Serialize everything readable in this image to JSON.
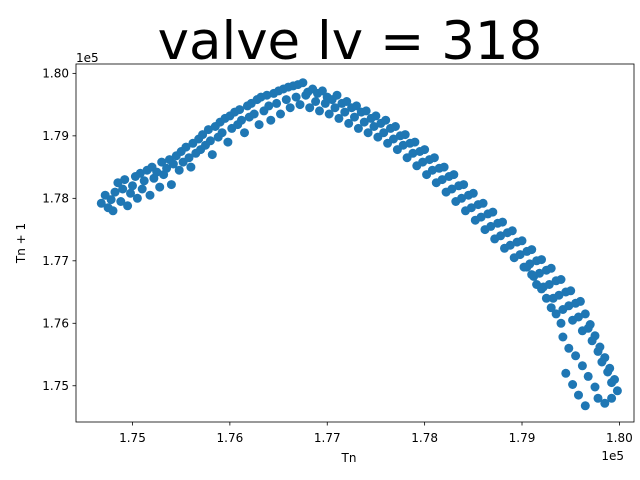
{
  "chart_data": {
    "type": "scatter",
    "title": "valve lv = 318",
    "xlabel": "Tn",
    "ylabel": "Tn + 1",
    "x_offset_label": "1e5",
    "y_offset_label": "1e5",
    "xlim": [
      1.7442,
      1.8015
    ],
    "ylim": [
      1.7442,
      1.8015
    ],
    "xticks": [
      {
        "value": 1.75,
        "label": "1.75"
      },
      {
        "value": 1.76,
        "label": "1.76"
      },
      {
        "value": 1.77,
        "label": "1.77"
      },
      {
        "value": 1.78,
        "label": "1.78"
      },
      {
        "value": 1.79,
        "label": "1.79"
      },
      {
        "value": 1.8,
        "label": "1.80"
      }
    ],
    "yticks": [
      {
        "value": 1.75,
        "label": "1.75"
      },
      {
        "value": 1.76,
        "label": "1.76"
      },
      {
        "value": 1.77,
        "label": "1.77"
      },
      {
        "value": 1.78,
        "label": "1.78"
      },
      {
        "value": 1.79,
        "label": "1.79"
      },
      {
        "value": 1.8,
        "label": "1.80"
      }
    ],
    "grid": false,
    "marker_color": "#1f77b4",
    "points": [
      [
        1.7468,
        1.7792
      ],
      [
        1.7472,
        1.7805
      ],
      [
        1.7475,
        1.7785
      ],
      [
        1.7478,
        1.7798
      ],
      [
        1.748,
        1.778
      ],
      [
        1.7482,
        1.781
      ],
      [
        1.7485,
        1.7825
      ],
      [
        1.7488,
        1.7795
      ],
      [
        1.749,
        1.7815
      ],
      [
        1.7492,
        1.783
      ],
      [
        1.7495,
        1.7788
      ],
      [
        1.7498,
        1.7808
      ],
      [
        1.75,
        1.782
      ],
      [
        1.7503,
        1.7835
      ],
      [
        1.7505,
        1.78
      ],
      [
        1.7508,
        1.784
      ],
      [
        1.751,
        1.7815
      ],
      [
        1.7512,
        1.7828
      ],
      [
        1.7515,
        1.7845
      ],
      [
        1.7518,
        1.7805
      ],
      [
        1.752,
        1.785
      ],
      [
        1.7522,
        1.7832
      ],
      [
        1.7525,
        1.7842
      ],
      [
        1.7528,
        1.7818
      ],
      [
        1.753,
        1.7858
      ],
      [
        1.7532,
        1.7838
      ],
      [
        1.7535,
        1.7848
      ],
      [
        1.7538,
        1.7862
      ],
      [
        1.754,
        1.7822
      ],
      [
        1.7542,
        1.7855
      ],
      [
        1.7545,
        1.7868
      ],
      [
        1.7548,
        1.7845
      ],
      [
        1.755,
        1.7875
      ],
      [
        1.7552,
        1.7858
      ],
      [
        1.7555,
        1.7882
      ],
      [
        1.7558,
        1.7865
      ],
      [
        1.756,
        1.785
      ],
      [
        1.7562,
        1.7888
      ],
      [
        1.7565,
        1.7872
      ],
      [
        1.7568,
        1.7895
      ],
      [
        1.757,
        1.7878
      ],
      [
        1.7572,
        1.7902
      ],
      [
        1.7575,
        1.7885
      ],
      [
        1.7578,
        1.791
      ],
      [
        1.758,
        1.7892
      ],
      [
        1.7582,
        1.787
      ],
      [
        1.7585,
        1.7915
      ],
      [
        1.7588,
        1.7898
      ],
      [
        1.759,
        1.7922
      ],
      [
        1.7592,
        1.7905
      ],
      [
        1.7595,
        1.7928
      ],
      [
        1.7598,
        1.789
      ],
      [
        1.76,
        1.7932
      ],
      [
        1.7602,
        1.7912
      ],
      [
        1.7605,
        1.7938
      ],
      [
        1.7608,
        1.7918
      ],
      [
        1.761,
        1.7942
      ],
      [
        1.7612,
        1.7925
      ],
      [
        1.7615,
        1.7905
      ],
      [
        1.7618,
        1.7948
      ],
      [
        1.762,
        1.793
      ],
      [
        1.7622,
        1.7952
      ],
      [
        1.7625,
        1.7935
      ],
      [
        1.7628,
        1.7958
      ],
      [
        1.763,
        1.7918
      ],
      [
        1.7632,
        1.7962
      ],
      [
        1.7635,
        1.794
      ],
      [
        1.7638,
        1.7965
      ],
      [
        1.764,
        1.7948
      ],
      [
        1.7642,
        1.7925
      ],
      [
        1.7645,
        1.7968
      ],
      [
        1.7648,
        1.7952
      ],
      [
        1.765,
        1.7972
      ],
      [
        1.7652,
        1.7935
      ],
      [
        1.7655,
        1.7975
      ],
      [
        1.7658,
        1.7958
      ],
      [
        1.766,
        1.7978
      ],
      [
        1.7662,
        1.7945
      ],
      [
        1.7665,
        1.798
      ],
      [
        1.7668,
        1.7962
      ],
      [
        1.767,
        1.7982
      ],
      [
        1.7672,
        1.795
      ],
      [
        1.7675,
        1.7985
      ],
      [
        1.7678,
        1.7965
      ],
      [
        1.768,
        1.797
      ],
      [
        1.7682,
        1.7945
      ],
      [
        1.7685,
        1.7975
      ],
      [
        1.7688,
        1.7955
      ],
      [
        1.769,
        1.7968
      ],
      [
        1.7692,
        1.794
      ],
      [
        1.7695,
        1.7972
      ],
      [
        1.7698,
        1.7952
      ],
      [
        1.77,
        1.7962
      ],
      [
        1.7702,
        1.7935
      ],
      [
        1.7705,
        1.7958
      ],
      [
        1.7708,
        1.7945
      ],
      [
        1.771,
        1.7965
      ],
      [
        1.7712,
        1.7928
      ],
      [
        1.7715,
        1.7952
      ],
      [
        1.7718,
        1.7938
      ],
      [
        1.772,
        1.7955
      ],
      [
        1.7722,
        1.792
      ],
      [
        1.7725,
        1.7945
      ],
      [
        1.7728,
        1.793
      ],
      [
        1.773,
        1.7948
      ],
      [
        1.7732,
        1.7912
      ],
      [
        1.7735,
        1.7938
      ],
      [
        1.7738,
        1.7922
      ],
      [
        1.774,
        1.794
      ],
      [
        1.7742,
        1.7905
      ],
      [
        1.7745,
        1.7928
      ],
      [
        1.7748,
        1.7915
      ],
      [
        1.775,
        1.7932
      ],
      [
        1.7752,
        1.7898
      ],
      [
        1.7755,
        1.792
      ],
      [
        1.7758,
        1.7905
      ],
      [
        1.776,
        1.7925
      ],
      [
        1.7762,
        1.7888
      ],
      [
        1.7765,
        1.7912
      ],
      [
        1.7768,
        1.7895
      ],
      [
        1.777,
        1.7915
      ],
      [
        1.7772,
        1.7878
      ],
      [
        1.7775,
        1.79
      ],
      [
        1.7778,
        1.7885
      ],
      [
        1.778,
        1.7902
      ],
      [
        1.7782,
        1.7865
      ],
      [
        1.7785,
        1.7888
      ],
      [
        1.7788,
        1.7872
      ],
      [
        1.779,
        1.789
      ],
      [
        1.7792,
        1.7852
      ],
      [
        1.7795,
        1.7875
      ],
      [
        1.7798,
        1.7858
      ],
      [
        1.78,
        1.7878
      ],
      [
        1.7802,
        1.7838
      ],
      [
        1.7805,
        1.7862
      ],
      [
        1.7808,
        1.7845
      ],
      [
        1.781,
        1.7865
      ],
      [
        1.7812,
        1.7825
      ],
      [
        1.7815,
        1.7848
      ],
      [
        1.7818,
        1.783
      ],
      [
        1.782,
        1.785
      ],
      [
        1.7822,
        1.781
      ],
      [
        1.7825,
        1.7835
      ],
      [
        1.7828,
        1.7815
      ],
      [
        1.783,
        1.7838
      ],
      [
        1.7832,
        1.7795
      ],
      [
        1.7835,
        1.782
      ],
      [
        1.7838,
        1.78
      ],
      [
        1.784,
        1.7822
      ],
      [
        1.7842,
        1.778
      ],
      [
        1.7845,
        1.7805
      ],
      [
        1.7848,
        1.7785
      ],
      [
        1.785,
        1.7808
      ],
      [
        1.7852,
        1.7765
      ],
      [
        1.7855,
        1.779
      ],
      [
        1.7858,
        1.777
      ],
      [
        1.786,
        1.7792
      ],
      [
        1.7862,
        1.775
      ],
      [
        1.7865,
        1.7775
      ],
      [
        1.7868,
        1.7755
      ],
      [
        1.787,
        1.7778
      ],
      [
        1.7872,
        1.7735
      ],
      [
        1.7875,
        1.776
      ],
      [
        1.7878,
        1.774
      ],
      [
        1.788,
        1.7762
      ],
      [
        1.7882,
        1.772
      ],
      [
        1.7885,
        1.7745
      ],
      [
        1.7888,
        1.7725
      ],
      [
        1.789,
        1.7748
      ],
      [
        1.7892,
        1.7705
      ],
      [
        1.7895,
        1.773
      ],
      [
        1.7898,
        1.771
      ],
      [
        1.79,
        1.7732
      ],
      [
        1.7902,
        1.769
      ],
      [
        1.7905,
        1.7715
      ],
      [
        1.7908,
        1.7695
      ],
      [
        1.791,
        1.7718
      ],
      [
        1.7912,
        1.7675
      ],
      [
        1.7915,
        1.77
      ],
      [
        1.7918,
        1.768
      ],
      [
        1.792,
        1.7702
      ],
      [
        1.7922,
        1.7658
      ],
      [
        1.7925,
        1.7685
      ],
      [
        1.7928,
        1.7662
      ],
      [
        1.793,
        1.7688
      ],
      [
        1.7932,
        1.764
      ],
      [
        1.7935,
        1.7668
      ],
      [
        1.7938,
        1.7645
      ],
      [
        1.794,
        1.767
      ],
      [
        1.7942,
        1.7622
      ],
      [
        1.7945,
        1.765
      ],
      [
        1.7948,
        1.7628
      ],
      [
        1.795,
        1.7652
      ],
      [
        1.7952,
        1.7605
      ],
      [
        1.7955,
        1.7632
      ],
      [
        1.7958,
        1.761
      ],
      [
        1.796,
        1.7635
      ],
      [
        1.7962,
        1.7588
      ],
      [
        1.7965,
        1.7615
      ],
      [
        1.7968,
        1.7592
      ],
      [
        1.797,
        1.7598
      ],
      [
        1.7972,
        1.7572
      ],
      [
        1.7975,
        1.758
      ],
      [
        1.7978,
        1.7555
      ],
      [
        1.798,
        1.7562
      ],
      [
        1.7982,
        1.7538
      ],
      [
        1.7985,
        1.7545
      ],
      [
        1.7988,
        1.7522
      ],
      [
        1.799,
        1.7528
      ],
      [
        1.7992,
        1.7505
      ],
      [
        1.7995,
        1.751
      ],
      [
        1.7998,
        1.7492
      ],
      [
        1.7942,
        1.7578
      ],
      [
        1.7948,
        1.756
      ],
      [
        1.7955,
        1.7548
      ],
      [
        1.7962,
        1.7532
      ],
      [
        1.7968,
        1.7515
      ],
      [
        1.7975,
        1.7498
      ],
      [
        1.7978,
        1.748
      ],
      [
        1.7985,
        1.7472
      ],
      [
        1.794,
        1.76
      ],
      [
        1.7935,
        1.7615
      ],
      [
        1.793,
        1.7625
      ],
      [
        1.7925,
        1.764
      ],
      [
        1.792,
        1.7655
      ],
      [
        1.7915,
        1.7662
      ],
      [
        1.791,
        1.7678
      ],
      [
        1.7905,
        1.769
      ],
      [
        1.7958,
        1.7485
      ],
      [
        1.7965,
        1.7468
      ],
      [
        1.7992,
        1.748
      ],
      [
        1.7945,
        1.752
      ],
      [
        1.7952,
        1.7502
      ]
    ]
  }
}
